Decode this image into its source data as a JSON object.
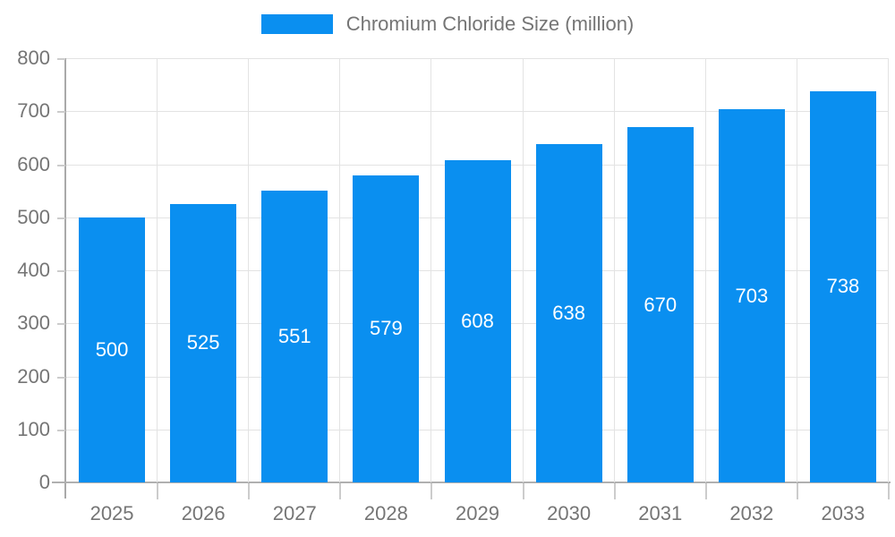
{
  "chart_data": {
    "type": "bar",
    "title": "",
    "legend": "Chromium Chloride Size (million)",
    "legend_position": "top-center",
    "categories": [
      "2025",
      "2026",
      "2027",
      "2028",
      "2029",
      "2030",
      "2031",
      "2032",
      "2033"
    ],
    "values": [
      500,
      525,
      551,
      579,
      608,
      638,
      670,
      703,
      738
    ],
    "xlabel": "",
    "ylabel": "",
    "ylim": [
      0,
      800
    ],
    "ytick_step": 100,
    "yticks": [
      0,
      100,
      200,
      300,
      400,
      500,
      600,
      700,
      800
    ],
    "grid": true,
    "bar_labels_inside": true,
    "colors": {
      "bar": "#0a8ff0",
      "bar_value_text": "#ffffff",
      "axis_line": "#a9a9a9",
      "grid_line": "#e3e3e3",
      "tick_line": "#cccccc",
      "label_text": "#757575",
      "background": "#ffffff"
    }
  }
}
